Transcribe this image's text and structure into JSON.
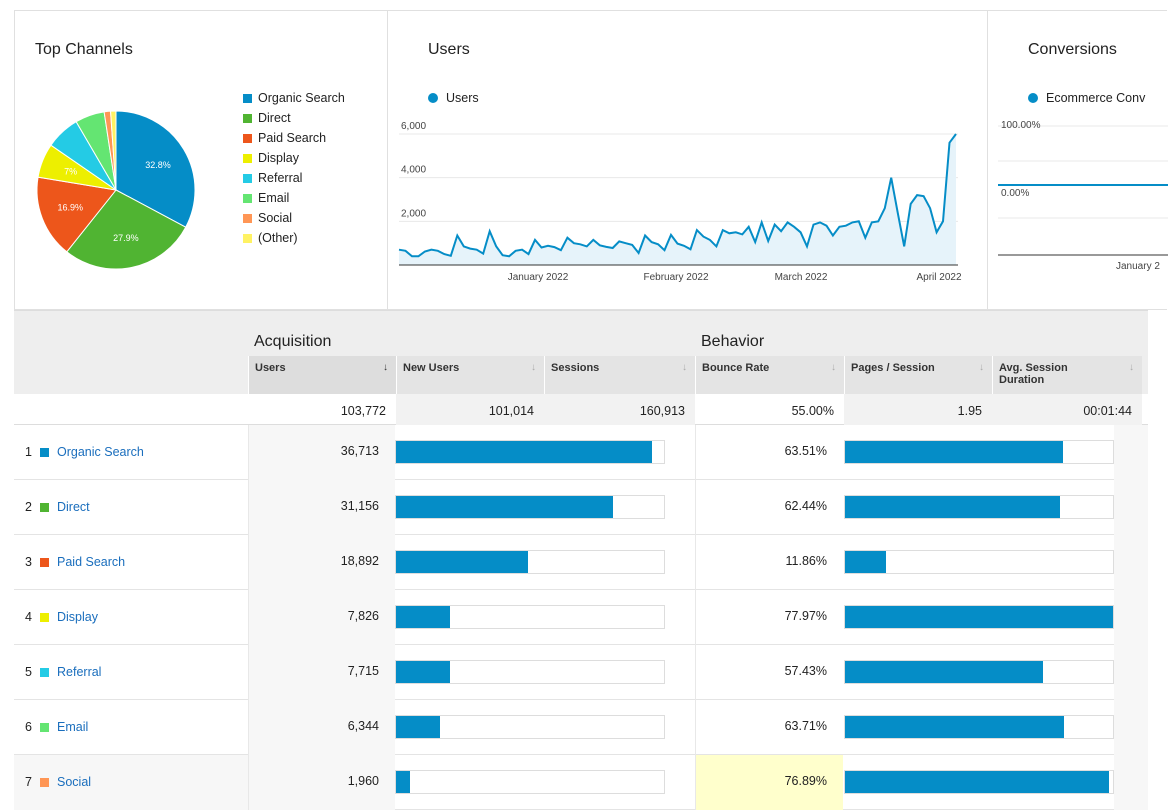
{
  "top_channels": {
    "title": "Top Channels",
    "legend": [
      {
        "label": "Organic Search",
        "color": "#058dc7"
      },
      {
        "label": "Direct",
        "color": "#50b432"
      },
      {
        "label": "Paid Search",
        "color": "#ed561b"
      },
      {
        "label": "Display",
        "color": "#edef00"
      },
      {
        "label": "Referral",
        "color": "#24cbe5"
      },
      {
        "label": "Email",
        "color": "#64e572"
      },
      {
        "label": "Social",
        "color": "#ff9655"
      },
      {
        "label": "(Other)",
        "color": "#fff263"
      }
    ]
  },
  "users_panel": {
    "title": "Users",
    "series_label": "Users"
  },
  "conversions_panel": {
    "title": "Conversions",
    "series_label": "Ecommerce Conv",
    "y_top": "100.00%",
    "y_zero": "0.00%",
    "x_label": "January 2"
  },
  "chart_data": [
    {
      "type": "pie",
      "categories": [
        "Organic Search",
        "Direct",
        "Paid Search",
        "Display",
        "Referral",
        "Email",
        "Social",
        "(Other)"
      ],
      "values": [
        32.8,
        27.9,
        16.9,
        7.0,
        7.0,
        6.0,
        1.3,
        1.1
      ],
      "data_labels": [
        "32.8%",
        "27.9%",
        "16.9%",
        "7%",
        "",
        "",
        "",
        ""
      ]
    },
    {
      "type": "area",
      "series": [
        {
          "name": "Users",
          "values": [
            700,
            650,
            400,
            400,
            620,
            700,
            650,
            500,
            420,
            1350,
            850,
            750,
            700,
            520,
            1550,
            850,
            450,
            400,
            650,
            700,
            500,
            1150,
            800,
            880,
            820,
            680,
            1250,
            1000,
            950,
            850,
            1150,
            900,
            830,
            780,
            1080,
            1000,
            920,
            550,
            1350,
            1050,
            950,
            680,
            1380,
            980,
            880,
            720,
            1600,
            1300,
            1150,
            850,
            1600,
            1450,
            1500,
            1400,
            1750,
            1050,
            1950,
            1100,
            1850,
            1550,
            1950,
            1750,
            1500,
            850,
            1850,
            1950,
            1800,
            1350,
            1750,
            1800,
            1950,
            2000,
            1250,
            1950,
            2000,
            2600,
            4000,
            2400,
            850,
            2800,
            3200,
            3150,
            2600,
            1500,
            2000,
            5600,
            6000
          ]
        }
      ],
      "x_ticks": [
        "January 2022",
        "February 2022",
        "March 2022",
        "April 2022"
      ],
      "y_ticks": [
        "2,000",
        "4,000",
        "6,000"
      ],
      "ylim": [
        0,
        6000
      ]
    }
  ],
  "table": {
    "groups": {
      "acquisition": "Acquisition",
      "behavior": "Behavior"
    },
    "headers": {
      "users": "Users",
      "new_users": "New Users",
      "sessions": "Sessions",
      "bounce": "Bounce Rate",
      "pages": "Pages / Session",
      "duration": "Avg. Session Duration"
    },
    "sort_glyph": "↓",
    "totals": {
      "users": "103,772",
      "new_users": "101,014",
      "sessions": "160,913",
      "bounce": "55.00%",
      "pages": "1.95",
      "duration": "00:01:44"
    },
    "rows": [
      {
        "num": "1",
        "channel": "Organic Search",
        "color": "#058dc7",
        "users": "36,713",
        "users_pct": 35.4,
        "bounce": "63.51%",
        "bounce_pct": 81.4
      },
      {
        "num": "2",
        "channel": "Direct",
        "color": "#50b432",
        "users": "31,156",
        "users_pct": 30.0,
        "bounce": "62.44%",
        "bounce_pct": 80.1
      },
      {
        "num": "3",
        "channel": "Paid Search",
        "color": "#ed561b",
        "users": "18,892",
        "users_pct": 18.2,
        "bounce": "11.86%",
        "bounce_pct": 15.2
      },
      {
        "num": "4",
        "channel": "Display",
        "color": "#edef00",
        "users": "7,826",
        "users_pct": 7.5,
        "bounce": "77.97%",
        "bounce_pct": 100
      },
      {
        "num": "5",
        "channel": "Referral",
        "color": "#24cbe5",
        "users": "7,715",
        "users_pct": 7.4,
        "bounce": "57.43%",
        "bounce_pct": 73.7
      },
      {
        "num": "6",
        "channel": "Email",
        "color": "#64e572",
        "users": "6,344",
        "users_pct": 6.1,
        "bounce": "63.71%",
        "bounce_pct": 81.7
      },
      {
        "num": "7",
        "channel": "Social",
        "color": "#ff9655",
        "users": "1,960",
        "users_pct": 1.9,
        "bounce": "76.89%",
        "bounce_pct": 98.6
      }
    ]
  }
}
